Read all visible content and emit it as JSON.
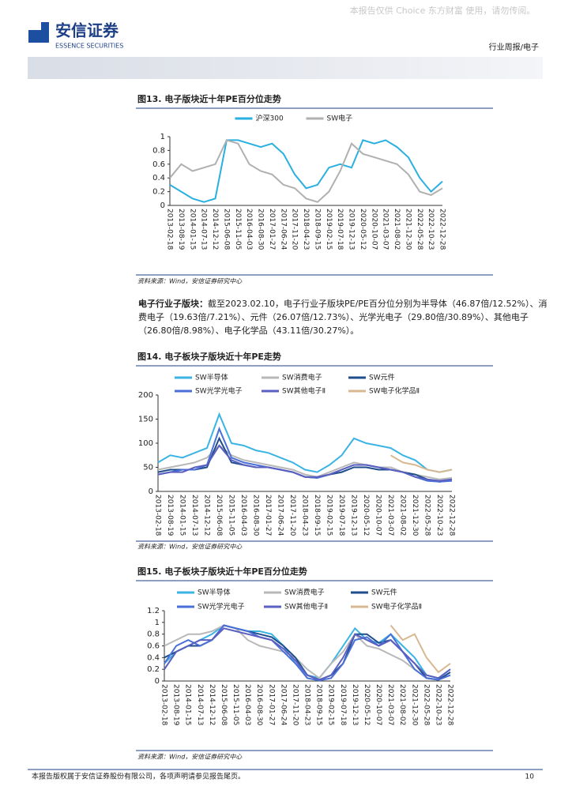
{
  "header": {
    "watermark": "本报告仅供 Choice 东方财富 使用，请勿传阅。",
    "logo": "安信证券",
    "logo_en": "ESSENCE SECURITIES",
    "section": "行业周报/电子"
  },
  "paragraph": {
    "label": "电子行业子版块：",
    "text": "截至2023.02.10，电子行业子版块PE/PE百分位分别为半导体（46.87倍/12.52%）、消费电子（19.63倍/7.21%）、元件（26.07倍/12.73%）、光学光电子（29.80倍/30.89%）、其他电子（26.80倍/8.98%）、电子化学品（43.11倍/30.27%）。"
  },
  "footer": {
    "text": "本报告版权属于安信证券股份有限公司，各项声明请参见报告尾页。",
    "page": "10"
  },
  "chart_data": [
    {
      "type": "line",
      "title": "图13. 电子版块近十年PE百分位走势",
      "source": "资料来源：Wind，安信证券研究中心",
      "categories": [
        "2013-02-18",
        "2013-08-19",
        "2014-01-15",
        "2014-07-13",
        "2014-12-12",
        "2015-06-08",
        "2015-11-05",
        "2016-04-03",
        "2016-08-30",
        "2017-01-27",
        "2017-06-24",
        "2017-11-20",
        "2018-04-23",
        "2018-09-15",
        "2019-02-15",
        "2019-07-18",
        "2019-12-13",
        "2020-05-12",
        "2020-10-07",
        "2021-03-07",
        "2021-08-02",
        "2021-12-30",
        "2022-05-28",
        "2022-10-23",
        "2022-12-28"
      ],
      "series": [
        {
          "name": "沪深300",
          "color": "#2ab0e0",
          "values": [
            0.3,
            0.2,
            0.1,
            0.05,
            0.1,
            0.95,
            0.95,
            0.9,
            0.85,
            0.9,
            0.75,
            0.45,
            0.25,
            0.3,
            0.55,
            0.6,
            0.55,
            0.95,
            0.9,
            0.95,
            0.85,
            0.7,
            0.4,
            0.2,
            0.35
          ]
        },
        {
          "name": "SW电子",
          "color": "#b0b0b0",
          "values": [
            0.4,
            0.6,
            0.5,
            0.55,
            0.6,
            0.95,
            0.9,
            0.6,
            0.5,
            0.45,
            0.3,
            0.25,
            0.1,
            0.05,
            0.2,
            0.5,
            0.9,
            0.75,
            0.7,
            0.65,
            0.6,
            0.45,
            0.2,
            0.15,
            0.25
          ]
        }
      ],
      "ylim": [
        0,
        1
      ],
      "yticks": [
        0,
        0.2,
        0.4,
        0.6,
        0.8,
        1
      ]
    },
    {
      "type": "line",
      "title": "图14. 电子板块子版块近十年PE走势",
      "source": "资料来源：Wind，安信证券研究中心",
      "categories": [
        "2013-02-18",
        "2013-08-19",
        "2014-01-15",
        "2014-07-13",
        "2014-12-12",
        "2015-06-08",
        "2015-11-05",
        "2016-04-03",
        "2016-08-30",
        "2017-01-27",
        "2017-06-24",
        "2017-11-20",
        "2018-04-23",
        "2018-09-15",
        "2019-02-15",
        "2019-07-18",
        "2019-12-13",
        "2020-05-12",
        "2020-10-07",
        "2021-03-07",
        "2021-08-02",
        "2021-12-30",
        "2022-05-28",
        "2022-10-23",
        "2022-12-28"
      ],
      "series": [
        {
          "name": "SW半导体",
          "color": "#3bb4e4",
          "values": [
            60,
            75,
            70,
            80,
            90,
            160,
            100,
            95,
            85,
            80,
            70,
            60,
            45,
            40,
            55,
            75,
            110,
            100,
            95,
            90,
            75,
            65,
            45,
            40,
            45
          ]
        },
        {
          "name": "SW消费电子",
          "color": "#b8b8b8",
          "values": [
            45,
            50,
            55,
            60,
            70,
            95,
            75,
            65,
            60,
            55,
            50,
            45,
            35,
            30,
            40,
            50,
            60,
            55,
            50,
            50,
            40,
            35,
            30,
            25,
            28
          ]
        },
        {
          "name": "SW元件",
          "color": "#1f4e8c",
          "values": [
            40,
            45,
            45,
            45,
            50,
            110,
            60,
            55,
            50,
            50,
            45,
            40,
            30,
            28,
            35,
            40,
            50,
            50,
            45,
            45,
            40,
            35,
            25,
            20,
            25
          ]
        },
        {
          "name": "SW光学光电子",
          "color": "#4a6fd8",
          "values": [
            35,
            40,
            45,
            45,
            55,
            130,
            70,
            60,
            55,
            50,
            45,
            40,
            30,
            28,
            35,
            45,
            55,
            55,
            50,
            45,
            40,
            30,
            22,
            20,
            22
          ]
        },
        {
          "name": "SW其他电子Ⅱ",
          "color": "#5a5fc0",
          "values": [
            35,
            40,
            40,
            50,
            55,
            95,
            65,
            55,
            50,
            50,
            45,
            40,
            30,
            30,
            35,
            45,
            55,
            55,
            50,
            45,
            40,
            30,
            25,
            22,
            25
          ]
        },
        {
          "name": "SW电子化学品Ⅱ",
          "color": "#d8b890",
          "values": [
            null,
            null,
            null,
            null,
            null,
            null,
            null,
            null,
            null,
            null,
            null,
            null,
            null,
            null,
            null,
            null,
            null,
            null,
            null,
            75,
            60,
            55,
            45,
            40,
            45
          ]
        }
      ],
      "ylim": [
        0,
        200
      ],
      "yticks": [
        0,
        50,
        100,
        150,
        200
      ]
    },
    {
      "type": "line",
      "title": "图15. 电子板块子版块近十年PE百分位走势",
      "source": "资料来源：Wind，安信证券研究中心",
      "categories": [
        "2013-02-18",
        "2013-08-19",
        "2014-01-15",
        "2014-07-13",
        "2014-12-12",
        "2015-06-08",
        "2015-11-05",
        "2016-04-03",
        "2016-08-30",
        "2017-01-27",
        "2017-06-24",
        "2017-11-20",
        "2018-04-23",
        "2018-09-15",
        "2019-02-15",
        "2019-07-18",
        "2019-12-13",
        "2020-05-12",
        "2020-10-07",
        "2021-03-07",
        "2021-08-02",
        "2021-12-30",
        "2022-05-28",
        "2022-10-23",
        "2022-12-28"
      ],
      "series": [
        {
          "name": "SW半导体",
          "color": "#3bb4e4",
          "values": [
            0.3,
            0.5,
            0.6,
            0.7,
            0.8,
            0.95,
            0.9,
            0.85,
            0.85,
            0.8,
            0.6,
            0.3,
            0.1,
            0.05,
            0.3,
            0.6,
            0.9,
            0.7,
            0.65,
            0.8,
            0.6,
            0.4,
            0.1,
            0.05,
            0.2
          ]
        },
        {
          "name": "SW消费电子",
          "color": "#b8b8b8",
          "values": [
            0.6,
            0.7,
            0.8,
            0.8,
            0.85,
            0.95,
            0.9,
            0.7,
            0.6,
            0.55,
            0.5,
            0.4,
            0.2,
            0.05,
            0.3,
            0.5,
            0.8,
            0.6,
            0.55,
            0.45,
            0.35,
            0.2,
            0.05,
            0.02,
            0.1
          ]
        },
        {
          "name": "SW元件",
          "color": "#1f4e8c",
          "values": [
            0.4,
            0.5,
            0.6,
            0.6,
            0.7,
            0.95,
            0.9,
            0.85,
            0.8,
            0.75,
            0.6,
            0.4,
            0.1,
            0.02,
            0.1,
            0.3,
            0.8,
            0.8,
            0.65,
            0.7,
            0.5,
            0.3,
            0.05,
            0.02,
            0.15
          ]
        },
        {
          "name": "SW光学光电子",
          "color": "#4a6fd8",
          "values": [
            0.3,
            0.6,
            0.7,
            0.6,
            0.7,
            0.95,
            0.9,
            0.85,
            0.75,
            0.7,
            0.5,
            0.3,
            0.05,
            0.01,
            0.05,
            0.3,
            0.7,
            0.75,
            0.6,
            0.8,
            0.5,
            0.2,
            0.05,
            0.02,
            0.1
          ]
        },
        {
          "name": "SW其他电子Ⅱ",
          "color": "#5a5fc0",
          "values": [
            0.2,
            0.5,
            0.6,
            0.7,
            0.7,
            0.9,
            0.85,
            0.8,
            0.75,
            0.7,
            0.55,
            0.35,
            0.1,
            0.02,
            0.1,
            0.4,
            0.8,
            0.7,
            0.6,
            0.7,
            0.5,
            0.3,
            0.1,
            0.05,
            0.2
          ]
        },
        {
          "name": "SW电子化学品Ⅱ",
          "color": "#d8b890",
          "values": [
            null,
            null,
            null,
            null,
            null,
            null,
            null,
            null,
            null,
            null,
            null,
            null,
            null,
            null,
            null,
            null,
            null,
            null,
            null,
            0.95,
            0.7,
            0.8,
            0.4,
            0.15,
            0.3
          ]
        }
      ],
      "ylim": [
        0,
        1.2
      ],
      "yticks": [
        0,
        0.2,
        0.4,
        0.6,
        0.8,
        1,
        1.2
      ]
    }
  ]
}
